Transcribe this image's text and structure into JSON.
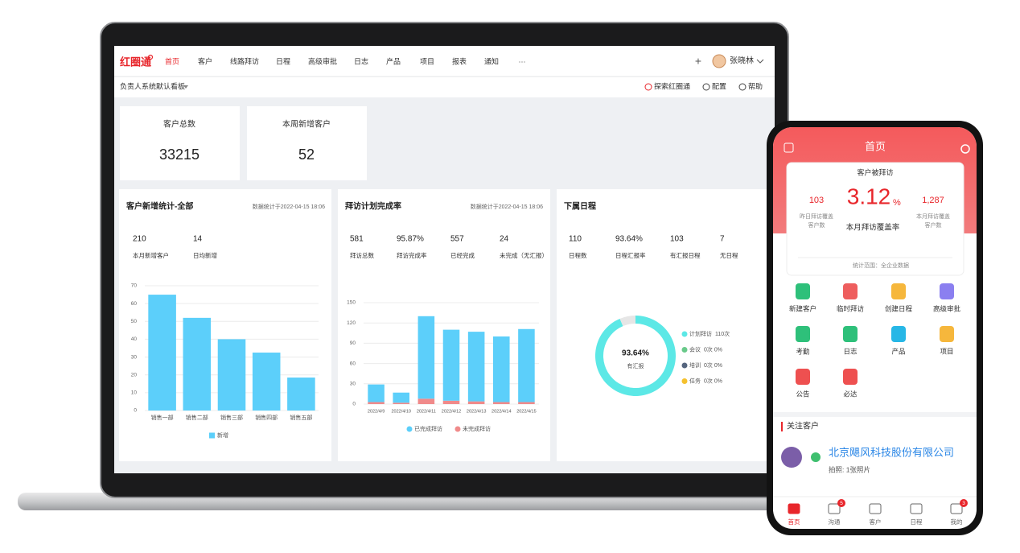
{
  "laptop": {
    "nav": {
      "logo": "红圈通",
      "items": [
        "首页",
        "客户",
        "线路拜访",
        "日程",
        "高级审批",
        "日志",
        "产品",
        "项目",
        "报表",
        "通知",
        "···"
      ],
      "add": "+",
      "user": "张晓林"
    },
    "toolbar": {
      "board": "负责人系统默认看板",
      "links": [
        "探索红圈通",
        "配置",
        "帮助"
      ]
    },
    "cards": [
      {
        "label": "客户总数",
        "value": 33215
      },
      {
        "label": "本周新增客户",
        "value": 52
      }
    ],
    "panels": [
      {
        "title": "客户新增统计-全部",
        "stamp": "数据统计于2022-04-15  18:06",
        "stats": [
          {
            "value": 210,
            "label": "本月新增客户"
          },
          {
            "value": 14,
            "label": "日均新增"
          }
        ],
        "chart": {
          "type": "bar",
          "categories": [
            "销售一部",
            "销售二部",
            "销售三部",
            "销售四部",
            "销售五部"
          ],
          "series": [
            {
              "name": "新增",
              "color": "#5ccffa",
              "values": [
                65,
                52,
                40,
                32.5,
                18.5
              ]
            }
          ],
          "ylim": [
            0,
            70
          ],
          "yticks": [
            0,
            10,
            20,
            30,
            40,
            50,
            60,
            70
          ],
          "grid": true
        }
      },
      {
        "title": "拜访计划完成率",
        "stamp": "数据统计于2022-04-15  18:06",
        "stats": [
          {
            "value": 581,
            "label": "拜访总数"
          },
          {
            "value": "95.87%",
            "label": "拜访完成率"
          },
          {
            "value": 557,
            "label": "已经完成"
          },
          {
            "value": 24,
            "label": "未完成（无汇报）"
          }
        ],
        "chart": {
          "type": "bar",
          "stacked": true,
          "categories": [
            "2022/4/9",
            "2022/4/10",
            "2022/4/11",
            "2022/4/12",
            "2022/4/13",
            "2022/4/14",
            "2022/4/15"
          ],
          "series": [
            {
              "name": "已完成拜访",
              "color": "#5ccffa",
              "values": [
                26,
                15,
                122,
                105,
                103,
                97,
                108
              ]
            },
            {
              "name": "未完成拜访",
              "color": "#f08a8a",
              "values": [
                3,
                2,
                8,
                5,
                4,
                3,
                3
              ]
            }
          ],
          "ylim": [
            0,
            150
          ],
          "yticks": [
            0,
            30,
            60,
            90,
            120,
            150
          ],
          "grid": true
        }
      },
      {
        "title": "下属日程",
        "stats": [
          {
            "value": 110,
            "label": "日程数"
          },
          {
            "value": "93.64%",
            "label": "日程汇报率"
          },
          {
            "value": 103,
            "label": "有汇报日程"
          },
          {
            "value": 7,
            "label": "无日程"
          }
        ],
        "chart": {
          "type": "pie",
          "values": [
            93.64,
            6.36
          ],
          "colors": [
            "#5ce8e6",
            "#e6e6e6"
          ],
          "center_value": "93.64%",
          "center_label": "有汇报",
          "legend": [
            {
              "name": "计划拜访",
              "detail": "110次",
              "color": "#5ce8e6"
            },
            {
              "name": "会议",
              "detail": "0次 0%",
              "color": "#69c98a"
            },
            {
              "name": "培训",
              "detail": "0次 0%",
              "color": "#55657e"
            },
            {
              "name": "任务",
              "detail": "0次 0%",
              "color": "#f5c12e"
            }
          ]
        }
      }
    ]
  },
  "phone": {
    "header": "首页",
    "card": {
      "title": "客户被拜访",
      "rate": "3.12",
      "rate_unit": "%",
      "rate_label": "本月拜访覆盖率",
      "left_value": 103,
      "left_label": [
        "昨日拜访覆盖",
        "客户数"
      ],
      "right_value": "1,287",
      "right_label": [
        "本月拜访覆盖",
        "客户数"
      ],
      "footer": "统计范围：全企业数据"
    },
    "shortcuts": [
      "新建客户",
      "临时拜访",
      "创建日程",
      "高级审批",
      "考勤",
      "日志",
      "产品",
      "项目",
      "公告",
      "必达"
    ],
    "section": "关注客户",
    "customer": {
      "name": "北京飓风科技股份有限公司",
      "note": "拍照: 1张照片"
    },
    "tabs": [
      {
        "label": "首页"
      },
      {
        "label": "沟通",
        "badge": 5
      },
      {
        "label": "客户"
      },
      {
        "label": "日程"
      },
      {
        "label": "我的",
        "badge": 3
      }
    ]
  }
}
